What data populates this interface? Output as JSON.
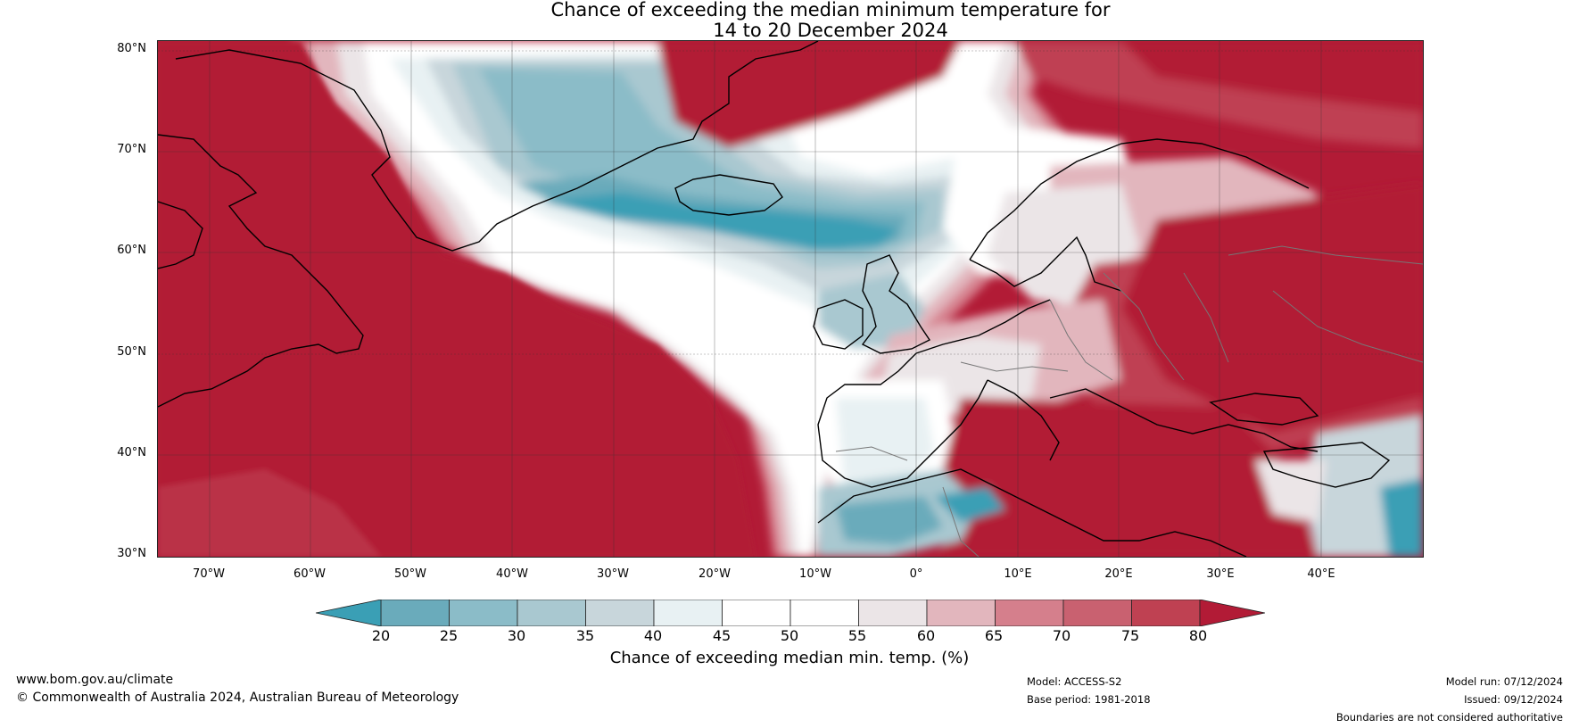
{
  "title": {
    "line1": "Chance of exceeding the median minimum temperature for",
    "line2": "14 to 20 December 2024"
  },
  "map": {
    "lat_labels": [
      "80°N",
      "70°N",
      "60°N",
      "50°N",
      "40°N",
      "30°N"
    ],
    "lon_labels": [
      "70°W",
      "60°W",
      "50°W",
      "40°W",
      "30°W",
      "20°W",
      "10°W",
      "0°",
      "10°E",
      "20°E",
      "30°E",
      "40°E"
    ],
    "extent": {
      "lon": [
        -75,
        50
      ],
      "lat": [
        30,
        81
      ]
    },
    "colors": {
      "p20": "#3a9fb5",
      "p25": "#6aabbb",
      "p30": "#8bbcc8",
      "p35": "#a9c8d0",
      "p40": "#c8d6db",
      "p45": "#e8f1f3",
      "p50": "#ffffff",
      "p55": "#ffffff",
      "p60": "#ebe5e7",
      "p65": "#e2b6bd",
      "p70": "#d57f8c",
      "p75": "#c96170",
      "p80": "#bf4152",
      "p85": "#b21b36"
    }
  },
  "colorbar": {
    "ticks": [
      "20",
      "25",
      "30",
      "35",
      "40",
      "45",
      "50",
      "55",
      "60",
      "65",
      "70",
      "75",
      "80"
    ],
    "label": "Chance of exceeding median min. temp. (%)",
    "segment_colors": [
      "#6aabbb",
      "#8bbcc8",
      "#a9c8d0",
      "#c8d6db",
      "#e8f1f3",
      "#ffffff",
      "#ffffff",
      "#ebe5e7",
      "#e2b6bd",
      "#d57f8c",
      "#c96170",
      "#bf4152"
    ],
    "low_color": "#3a9fb5",
    "high_color": "#b21b36"
  },
  "footer": {
    "website": "www.bom.gov.au/climate",
    "copyright": "© Commonwealth of Australia 2024, Australian Bureau of Meteorology",
    "model": "Model: ACCESS-S2",
    "base_period": "Base period: 1981-2018",
    "model_run": "Model run: 07/12/2024",
    "issued": "Issued: 09/12/2024",
    "disclaimer": "Boundaries are not considered authoritative"
  }
}
